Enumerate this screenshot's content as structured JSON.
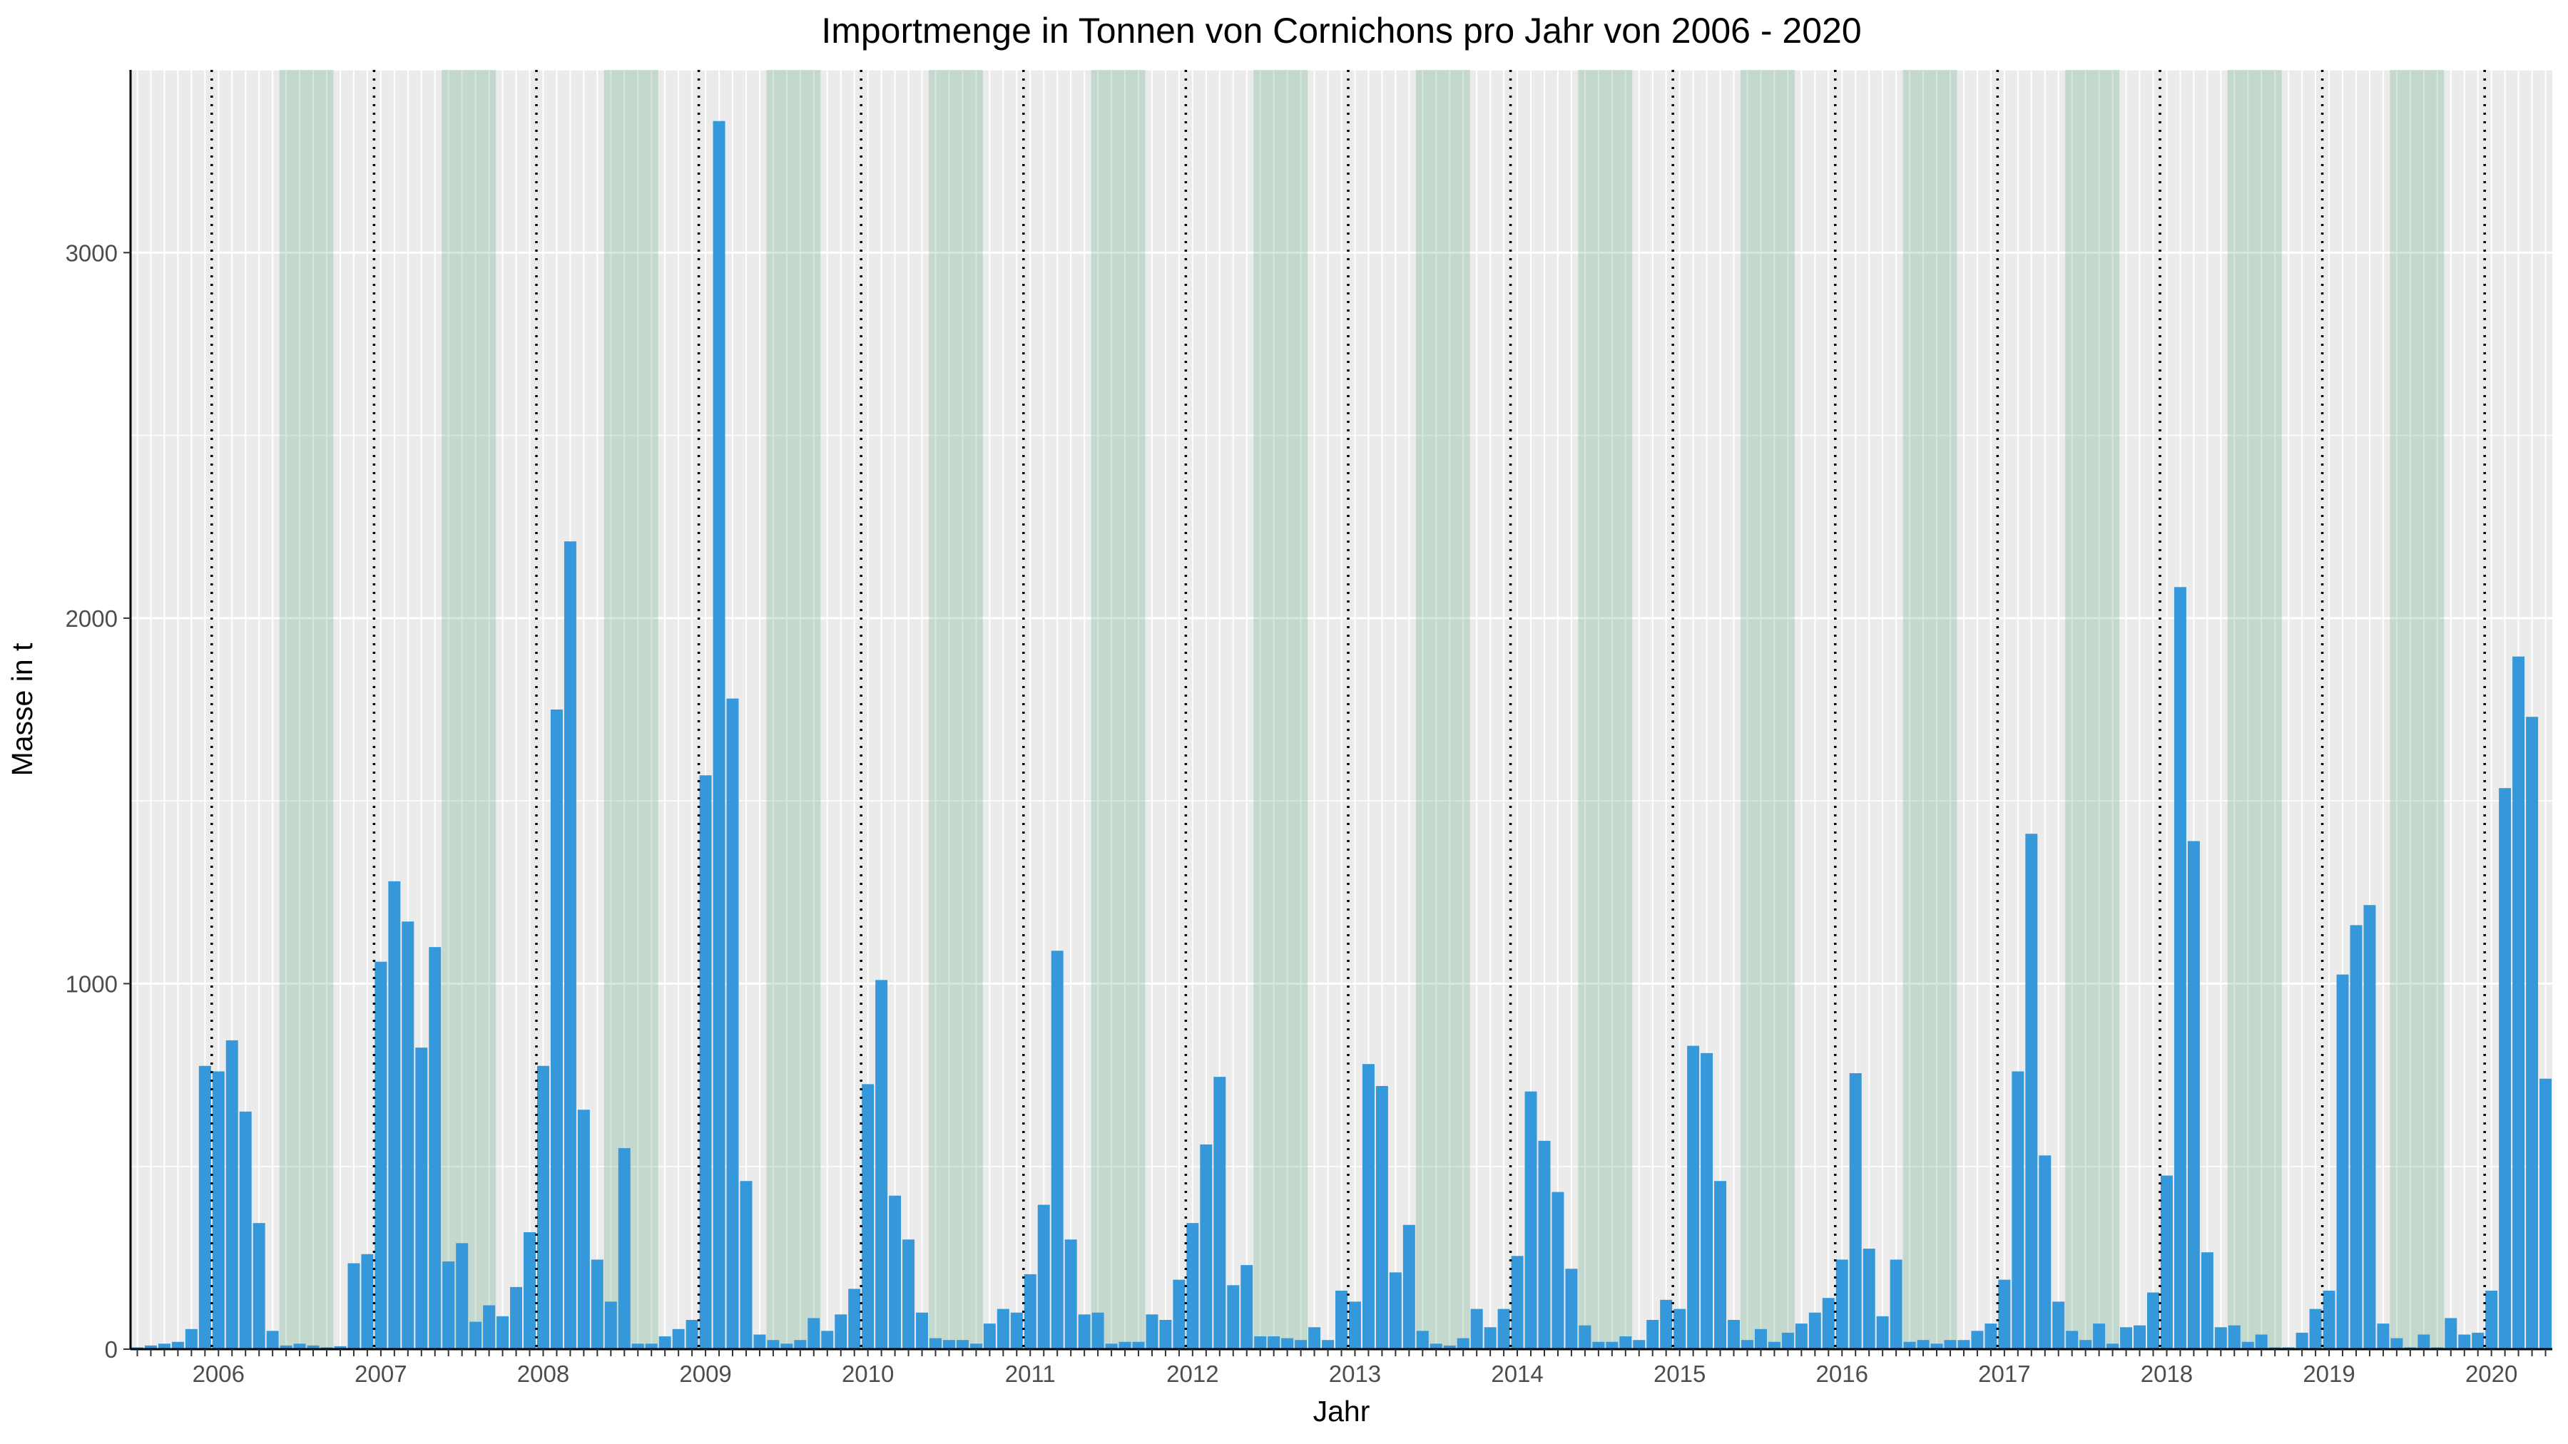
{
  "chart_data": {
    "type": "bar",
    "title": "Importmenge in Tonnen von Cornichons pro Jahr von 2006 - 2020",
    "xlabel": "Jahr",
    "ylabel": "Masse in t",
    "x_tick_labels": [
      "2006",
      "2007",
      "2008",
      "2009",
      "2010",
      "2011",
      "2012",
      "2013",
      "2014",
      "2015",
      "2016",
      "2017",
      "2018",
      "2019",
      "2020"
    ],
    "y_ticks": [
      0,
      1000,
      2000,
      3000
    ],
    "ylim": [
      0,
      3500
    ],
    "time_unit": "month",
    "start": "2005-07",
    "season_highlight": {
      "months": "Jun-Sep",
      "color": "#2e8b57"
    },
    "year_separator": "dotted vertical line between December and January",
    "grid": true,
    "bar_color": "#3498db",
    "panel_color": "#ebebeb",
    "series": [
      {
        "values": [
          5,
          10,
          15,
          20,
          55,
          775,
          760,
          845,
          650,
          345,
          50,
          10,
          15,
          10,
          5,
          8,
          235,
          260,
          1060,
          1280,
          1170,
          825,
          1100,
          240,
          290,
          75,
          120,
          90,
          170,
          320,
          775,
          1750,
          2210,
          655,
          245,
          130,
          550,
          15,
          15,
          35,
          55,
          80,
          1570,
          3360,
          1780,
          460,
          40,
          25,
          15,
          25,
          85,
          50,
          95,
          165,
          725,
          1010,
          420,
          300,
          100,
          30,
          25,
          25,
          15,
          70,
          110,
          100,
          205,
          395,
          1090,
          300,
          95,
          100,
          15,
          20,
          20,
          95,
          80,
          190,
          345,
          560,
          745,
          175,
          230,
          35,
          35,
          30,
          25,
          60,
          25,
          160,
          130,
          780,
          720,
          210,
          340,
          50,
          15,
          10,
          30,
          110,
          60,
          110,
          255,
          705,
          570,
          430,
          220,
          65,
          20,
          20,
          35,
          25,
          80,
          135,
          110,
          830,
          810,
          460,
          80,
          25,
          55,
          20,
          45,
          70,
          100,
          140,
          245,
          755,
          275,
          90,
          245,
          20,
          25,
          15,
          25,
          25,
          50,
          70,
          190,
          760,
          1410,
          530,
          130,
          50,
          25,
          70,
          15,
          60,
          65,
          155,
          475,
          2085,
          1390,
          265,
          60,
          65,
          20,
          40,
          5,
          5,
          45,
          110,
          160,
          1025,
          1160,
          1215,
          70,
          30,
          5,
          40,
          5,
          85,
          40,
          45,
          160,
          1535,
          1895,
          1730,
          740
        ]
      }
    ]
  }
}
